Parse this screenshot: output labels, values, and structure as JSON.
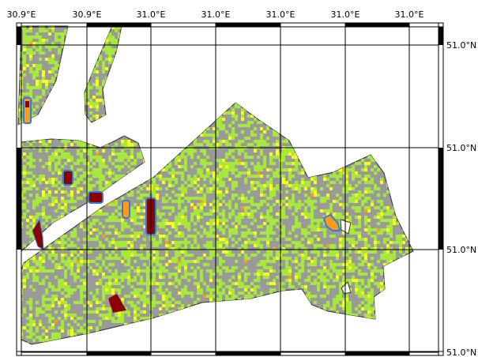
{
  "map": {
    "top_longitude_labels": [
      "30.9°E",
      "30.9°E",
      "31.0°E",
      "31.0°E",
      "31.0°E",
      "31.0°E",
      "31.0°E"
    ],
    "right_latitude_labels": [
      "51.0°N",
      "51.0°N",
      "51.0°N",
      "51.0°N"
    ],
    "colors": {
      "background": "#ffffff",
      "field_base": "#9a9a9a",
      "low_class": "#a6e83c",
      "mid_class": "#ffff1a",
      "high_class": "#ff9a1a",
      "very_high_class": "#8b0000",
      "highlight_outline": "#2f7fd0",
      "border_band": "#000000",
      "grid_line": "#000000"
    }
  }
}
